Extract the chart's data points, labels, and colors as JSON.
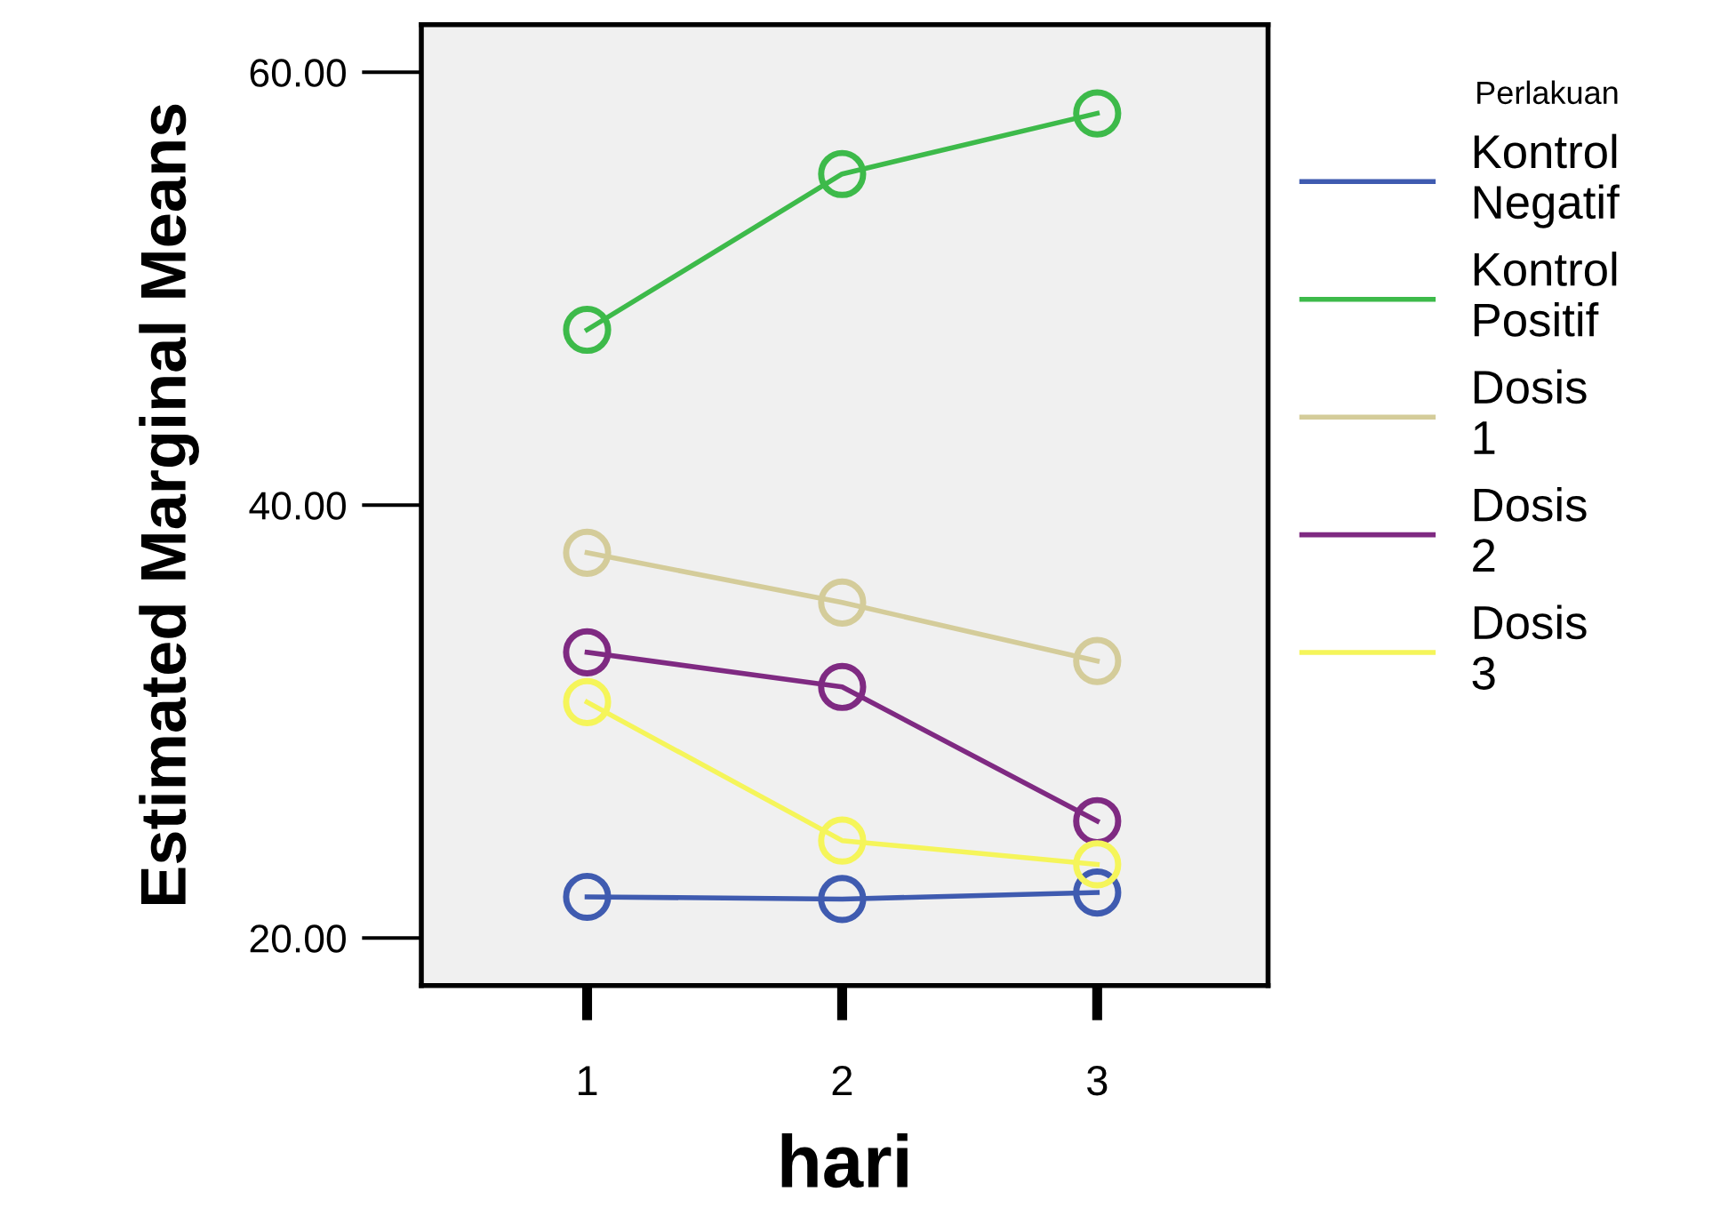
{
  "chart_data": {
    "type": "line",
    "xlabel": "hari",
    "ylabel": "Estimated Marginal Means",
    "legend_title": "Perlakuan",
    "categories": [
      "1",
      "2",
      "3"
    ],
    "series": [
      {
        "name": "Kontrol Negatif",
        "color": "#3f5bb0",
        "values": [
          21.9,
          21.8,
          22.1
        ]
      },
      {
        "name": "Kontrol Positif",
        "color": "#3dba4a",
        "values": [
          48.1,
          55.3,
          58.1
        ]
      },
      {
        "name": "Dosis 1",
        "color": "#d4cc9a",
        "values": [
          37.8,
          35.5,
          32.8
        ]
      },
      {
        "name": "Dosis 2",
        "color": "#7f2a82",
        "values": [
          33.2,
          31.6,
          25.4
        ]
      },
      {
        "name": "Dosis 3",
        "color": "#f5f55a",
        "values": [
          30.9,
          24.5,
          23.4
        ]
      }
    ],
    "ylim": [
      17.8,
      62.2
    ],
    "yticks": [
      {
        "value": 20,
        "label": "20.00"
      },
      {
        "value": 40,
        "label": "40.00"
      },
      {
        "value": 60,
        "label": "60.00"
      }
    ],
    "marker": "circle",
    "line_style": "solid",
    "grid": false,
    "legend": "right"
  }
}
